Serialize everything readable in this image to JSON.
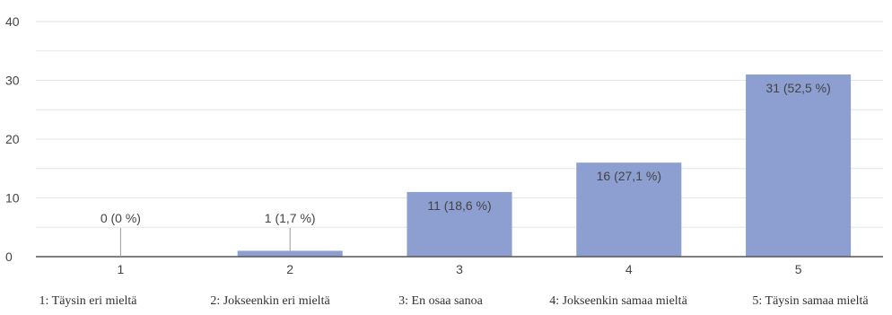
{
  "chart_data": {
    "type": "bar",
    "categories": [
      "1",
      "2",
      "3",
      "4",
      "5"
    ],
    "values": [
      0,
      1,
      11,
      16,
      31
    ],
    "data_labels": [
      "0 (0 %)",
      "1 (1,7 %)",
      "11 (18,6 %)",
      "16 (27,1 %)",
      "31 (52,5 %)"
    ],
    "ylim": [
      0,
      40
    ],
    "yticks": [
      "0",
      "10",
      "20",
      "30",
      "40"
    ],
    "grid": true,
    "legend_position": "bottom",
    "category_legend": [
      "1: Täysin eri mieltä",
      "2: Jokseenkin eri mieltä",
      "3: En osaa sanoa",
      "4: Jokseenkin samaa mieltä",
      "5: Täysin samaa mieltä"
    ],
    "colors": {
      "bar": "#8d9fd0",
      "grid": "#e6e6e6",
      "axis": "#555555",
      "label": "#444444"
    }
  }
}
